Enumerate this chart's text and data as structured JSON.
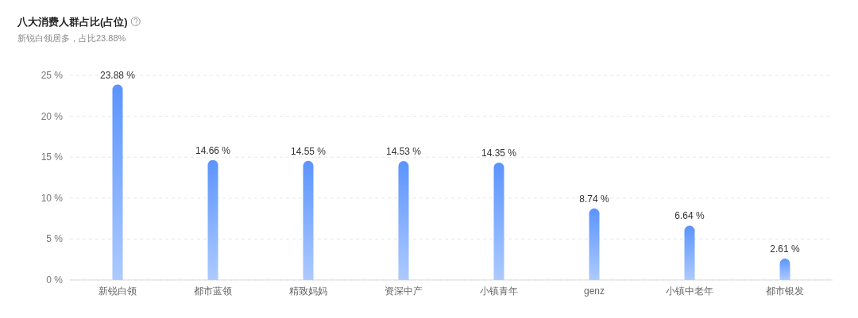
{
  "chart_data": {
    "type": "bar",
    "title": "八大消费人群占比(占位)",
    "subtitle": "新锐白领居多，占比23.88%",
    "categories": [
      "新锐白领",
      "都市蓝领",
      "精致妈妈",
      "资深中产",
      "小镇青年",
      "genz",
      "小镇中老年",
      "都市银发"
    ],
    "values": [
      23.88,
      14.66,
      14.55,
      14.53,
      14.35,
      8.74,
      6.64,
      2.61
    ],
    "value_labels": [
      "23.88 %",
      "14.66 %",
      "14.55 %",
      "14.53 %",
      "14.35 %",
      "8.74 %",
      "6.64 %",
      "2.61 %"
    ],
    "color": "#5b94ff",
    "ylim": [
      0,
      25
    ],
    "yticks": [
      {
        "value": 0,
        "label": "0 %"
      },
      {
        "value": 5,
        "label": "5 %"
      },
      {
        "value": 10,
        "label": "10 %"
      },
      {
        "value": 15,
        "label": "15 %"
      },
      {
        "value": 20,
        "label": "20 %"
      },
      {
        "value": 25,
        "label": "25 %"
      }
    ],
    "grid": "y"
  }
}
